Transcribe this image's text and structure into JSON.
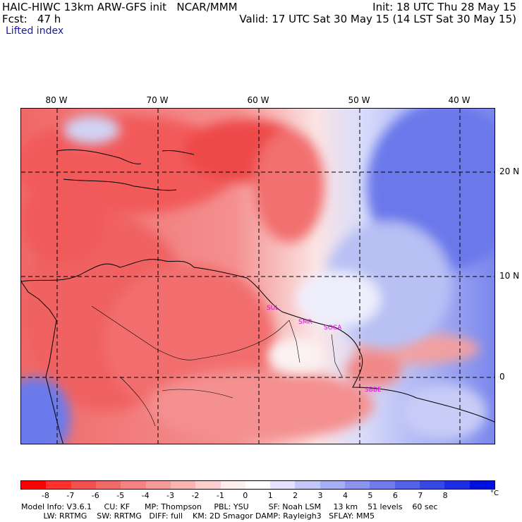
{
  "header": {
    "line1_left": "HAIC-HIWC 13km ARW-GFS init   NCAR/MMM",
    "line1_right": "Init: 18 UTC Thu 28 May 15",
    "line2_left": "Fcst:   47 h",
    "line2_right": "Valid: 17 UTC Sat 30 May 15 (14 LST Sat 30 May 15)",
    "field": "Lifted index"
  },
  "map": {
    "lon_labels": [
      "80 W",
      "70 W",
      "60 W",
      "50 W",
      "40 W"
    ],
    "lat_labels": [
      "20 N",
      "10 N",
      "0"
    ],
    "stations": [
      "SUL",
      "SMR",
      "SOCA",
      "SBBE"
    ],
    "warm_color": "#f06060",
    "cold_color": "#5a6ae8",
    "neutral_color": "#fbeeee"
  },
  "colorbar": {
    "ticks": [
      "-8",
      "-7",
      "-6",
      "-5",
      "-4",
      "-3",
      "-2",
      "-1",
      "0",
      "1",
      "2",
      "3",
      "4",
      "5",
      "6",
      "7",
      "8"
    ],
    "unit": "°C",
    "colors": [
      "#ff0000",
      "#ff3030",
      "#f45050",
      "#f06a6a",
      "#f48484",
      "#f89a9a",
      "#fbb4b4",
      "#fdd0d0",
      "#fff0f0",
      "#ffffff",
      "#e4e4fc",
      "#c4c8f8",
      "#a8aef4",
      "#8c94f0",
      "#707cec",
      "#5462e8",
      "#3848e4",
      "#1c2ce0",
      "#0010dc"
    ]
  },
  "footer": {
    "line1": "Model Info: V3.6.1     CU: KF      MP: Thompson     PBL: YSU        SF: Noah LSM     13 km    51 levels    60 sec",
    "line2": "         LW: RRTMG    SW: RRTMG   DIFF: full    KM: 2D Smagor DAMP: Rayleigh3   SFLAY: MM5"
  }
}
